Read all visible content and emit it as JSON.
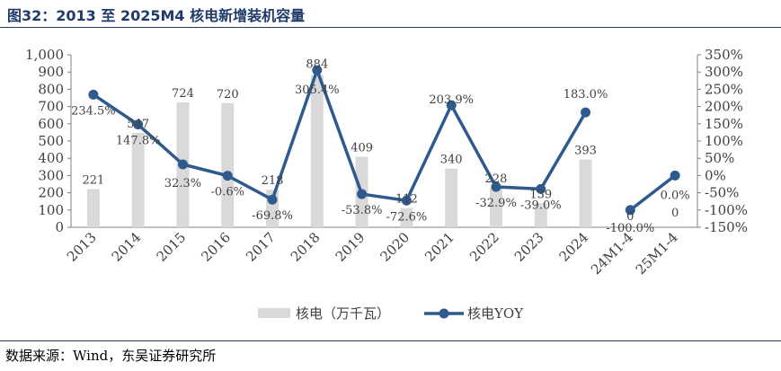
{
  "title": "图32：2013 至 2025M4 核电新增装机容量",
  "source": "数据来源：Wind，东吴证券研究所",
  "colors": {
    "bar": "#d9d9d9",
    "line": "#2e5a8e",
    "text": "#404040"
  },
  "chart_data": {
    "type": "bar+line",
    "categories": [
      "2013",
      "2014",
      "2015",
      "2016",
      "2017",
      "2018",
      "2019",
      "2020",
      "2021",
      "2022",
      "2023",
      "2024",
      "24M1-4",
      "25M1-4"
    ],
    "bar_series": {
      "name": "核电（万千瓦）",
      "values": [
        221,
        547,
        724,
        720,
        218,
        884,
        409,
        112,
        340,
        228,
        139,
        393,
        0,
        0
      ],
      "labels": [
        "221",
        "547",
        "724",
        "720",
        "218",
        "884",
        "409",
        "112",
        "340",
        "228",
        "139",
        "393",
        "0",
        "0"
      ]
    },
    "line_series": {
      "name": "核电YOY",
      "values": [
        234.5,
        147.8,
        32.3,
        -0.6,
        -69.8,
        305.4,
        -53.8,
        -72.6,
        203.9,
        -32.9,
        -39.0,
        183.0,
        -100.0,
        0.0
      ],
      "labels": [
        "234.5%",
        "147.8%",
        "32.3%",
        "-0.6%",
        "-69.8%",
        "305.4%",
        "-53.8%",
        "-72.6%",
        "203.9%",
        "-32.9%",
        "-39.0%",
        "183.0%",
        "-100.0%",
        "0.0%"
      ]
    },
    "y_left": {
      "min": 0,
      "max": 1000,
      "ticks": [
        "0",
        "100",
        "200",
        "300",
        "400",
        "500",
        "600",
        "700",
        "800",
        "900",
        "1,000"
      ]
    },
    "y_right": {
      "min": -150,
      "max": 350,
      "ticks": [
        "-150%",
        "-100%",
        "-50%",
        "0%",
        "50%",
        "100%",
        "150%",
        "200%",
        "250%",
        "300%",
        "350%"
      ]
    },
    "legend_position": "bottom",
    "grid": false
  }
}
